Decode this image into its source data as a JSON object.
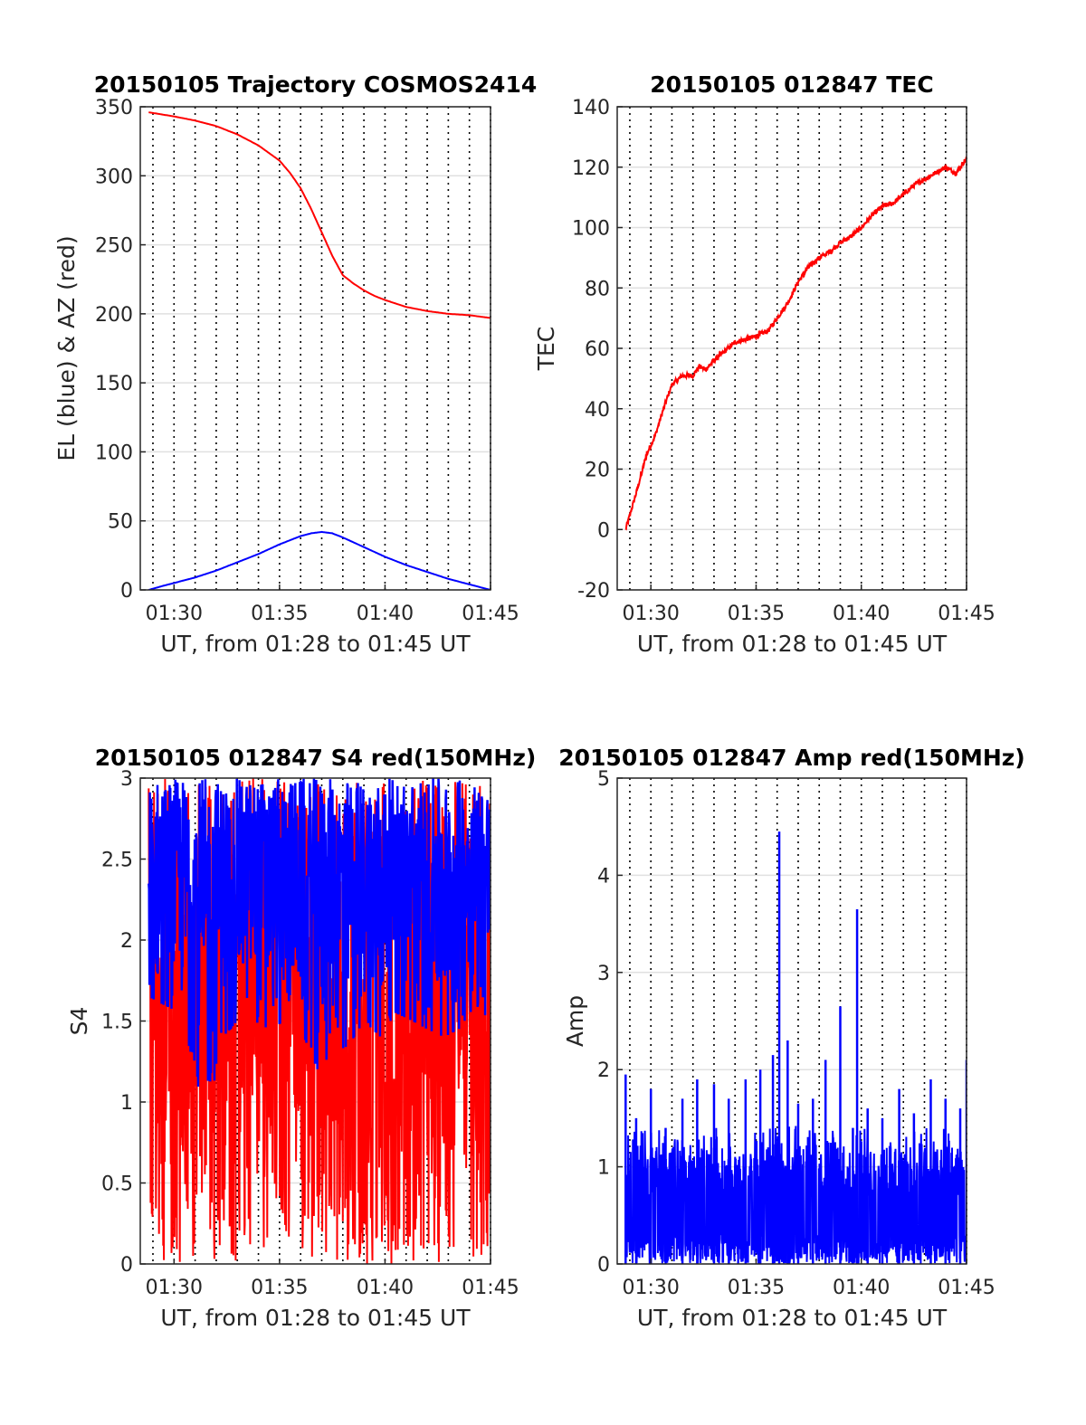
{
  "colors": {
    "az_line": "#ff0000",
    "el_line": "#0000ff",
    "tec_line": "#ff0000",
    "s4_red": "#ff0000",
    "s4_blue": "#0000ff",
    "amp_line": "#0000ff",
    "grid_dotted": "#000000",
    "grid_light": "#e0e0e0",
    "axes": "#262626"
  },
  "chart_data": [
    {
      "id": "trajectory",
      "type": "line",
      "title": "20150105 Trajectory COSMOS2414",
      "xlabel": "UT, from 01:28 to 01:45 UT",
      "ylabel": "EL (blue) & AZ (red)",
      "xlim": [
        88.4,
        105
      ],
      "ylim": [
        0,
        350
      ],
      "xticks": [
        90,
        95,
        100,
        105
      ],
      "xtick_labels": [
        "01:30",
        "01:35",
        "01:40",
        "01:45"
      ],
      "vgrid_minutes": [
        89,
        90,
        91,
        92,
        93,
        94,
        95,
        96,
        97,
        98,
        99,
        100,
        101,
        102,
        103,
        104,
        105
      ],
      "yticks": [
        0,
        50,
        100,
        150,
        200,
        250,
        300,
        350
      ],
      "ytick_labels": [
        "0",
        "50",
        "100",
        "150",
        "200",
        "250",
        "300",
        "350"
      ],
      "grid": true,
      "series": [
        {
          "name": "AZ",
          "color": "#ff0000",
          "x": [
            88.8,
            90,
            91,
            92,
            93,
            94,
            95,
            95.5,
            96,
            96.5,
            97,
            97.5,
            98,
            98.5,
            99,
            99.5,
            100,
            101,
            102,
            103,
            104,
            105
          ],
          "y": [
            346,
            343,
            340,
            336,
            330,
            322,
            311,
            302,
            291,
            276,
            259,
            242,
            228,
            222,
            217,
            213,
            210,
            205,
            202,
            200,
            199,
            197
          ]
        },
        {
          "name": "EL",
          "color": "#0000ff",
          "x": [
            88.8,
            89.5,
            90,
            91,
            92,
            93,
            94,
            95,
            96,
            96.5,
            97,
            97.5,
            98,
            99,
            100,
            101,
            102,
            103,
            104,
            105
          ],
          "y": [
            0,
            3,
            5,
            9,
            14,
            20,
            26,
            33,
            39,
            41,
            42,
            41,
            38,
            31,
            24,
            18,
            13,
            8,
            4,
            0
          ]
        }
      ]
    },
    {
      "id": "tec",
      "type": "line",
      "title": "20150105 012847 TEC",
      "xlabel": "UT, from 01:28 to 01:45 UT",
      "ylabel": "TEC",
      "xlim": [
        88.4,
        105
      ],
      "ylim": [
        -20,
        140
      ],
      "xticks": [
        90,
        95,
        100,
        105
      ],
      "xtick_labels": [
        "01:30",
        "01:35",
        "01:40",
        "01:45"
      ],
      "vgrid_minutes": [
        89,
        90,
        91,
        92,
        93,
        94,
        95,
        96,
        97,
        98,
        99,
        100,
        101,
        102,
        103,
        104,
        105
      ],
      "yticks": [
        -20,
        0,
        20,
        40,
        60,
        80,
        100,
        120,
        140
      ],
      "ytick_labels": [
        "-20",
        "0",
        "20",
        "40",
        "60",
        "80",
        "100",
        "120",
        "140"
      ],
      "grid": true,
      "series": [
        {
          "name": "TEC",
          "color": "#ff0000",
          "x": [
            88.8,
            89.3,
            89.8,
            90.2,
            90.6,
            91.0,
            91.5,
            92.0,
            92.3,
            92.6,
            93.0,
            93.5,
            94.0,
            94.5,
            95.0,
            95.3,
            95.6,
            96.0,
            96.5,
            97.0,
            97.5,
            98.0,
            98.5,
            99.0,
            99.5,
            100.0,
            100.5,
            101.0,
            101.5,
            102.0,
            102.5,
            103.0,
            103.5,
            104.0,
            104.5,
            105.0
          ],
          "y": [
            0,
            12,
            25,
            31,
            40,
            48,
            51,
            51,
            54,
            53,
            56,
            59,
            62,
            63,
            64,
            65,
            66,
            70,
            75,
            82,
            87,
            90,
            92,
            95,
            97,
            100,
            104,
            107,
            108,
            111,
            114,
            116,
            118,
            120,
            118,
            123
          ]
        }
      ]
    },
    {
      "id": "s4",
      "type": "line",
      "title": "20150105 012847 S4 red(150MHz)",
      "xlabel": "UT, from 01:28 to 01:45 UT",
      "ylabel": "S4",
      "xlim": [
        88.4,
        105
      ],
      "ylim": [
        0,
        3
      ],
      "xticks": [
        90,
        95,
        100,
        105
      ],
      "xtick_labels": [
        "01:30",
        "01:35",
        "01:40",
        "01:45"
      ],
      "vgrid_minutes": [
        89,
        90,
        91,
        92,
        93,
        94,
        95,
        96,
        97,
        98,
        99,
        100,
        101,
        102,
        103,
        104,
        105
      ],
      "yticks": [
        0,
        0.5,
        1,
        1.5,
        2,
        2.5,
        3
      ],
      "ytick_labels": [
        "0",
        "0.5",
        "1",
        "1.5",
        "2",
        "2.5",
        "3"
      ],
      "grid": true,
      "series": [
        {
          "name": "S4 red",
          "color": "#ff0000",
          "x": [
            88.8,
            90.3,
            91.6,
            93.0,
            94.5,
            96.0,
            97.5,
            99.0,
            100.5,
            102.0,
            103.5,
            105.0
          ],
          "y_max": [
            3,
            3,
            3,
            3,
            3,
            3,
            3,
            3,
            3,
            3,
            3,
            3
          ],
          "y_min": [
            0,
            0,
            0,
            0,
            0,
            0,
            0,
            0,
            0,
            0,
            0,
            0
          ]
        },
        {
          "name": "S4 blue",
          "color": "#0000ff",
          "x": [
            88.8,
            89.5,
            90.3,
            91.0,
            91.6,
            92.3,
            93.0,
            93.8,
            94.5,
            95.3,
            96.0,
            96.8,
            97.5,
            98.3,
            99.0,
            99.8,
            100.5,
            101.3,
            102.0,
            102.8,
            103.5,
            104.3,
            105.0
          ],
          "y_max": [
            3,
            3,
            3,
            3,
            3,
            3,
            3,
            3,
            3,
            3,
            3,
            3,
            3,
            3,
            3,
            3,
            3,
            3,
            3,
            3,
            3,
            3,
            3
          ],
          "y_min": [
            1.65,
            1.6,
            1.55,
            1.2,
            0.75,
            1.4,
            1.5,
            1.5,
            1.45,
            1.5,
            1.45,
            1.2,
            1.3,
            1.35,
            1.5,
            1.4,
            1.55,
            1.5,
            1.45,
            1.4,
            1.45,
            1.6,
            1.5
          ]
        }
      ]
    },
    {
      "id": "amp",
      "type": "line",
      "title": "20150105 012847 Amp red(150MHz)",
      "xlabel": "UT, from 01:28 to 01:45 UT",
      "ylabel": "Amp",
      "xlim": [
        88.4,
        105
      ],
      "ylim": [
        0,
        5
      ],
      "xticks": [
        90,
        95,
        100,
        105
      ],
      "xtick_labels": [
        "01:30",
        "01:35",
        "01:40",
        "01:45"
      ],
      "vgrid_minutes": [
        89,
        90,
        91,
        92,
        93,
        94,
        95,
        96,
        97,
        98,
        99,
        100,
        101,
        102,
        103,
        104,
        105
      ],
      "yticks": [
        0,
        1,
        2,
        3,
        4,
        5
      ],
      "ytick_labels": [
        "0",
        "1",
        "2",
        "3",
        "4",
        "5"
      ],
      "grid": true,
      "series": [
        {
          "name": "Amp",
          "color": "#0000ff",
          "x": [
            88.8,
            89.3,
            90.0,
            90.7,
            91.5,
            92.2,
            93.0,
            93.7,
            94.5,
            95.2,
            95.8,
            96.1,
            96.5,
            97.0,
            97.7,
            98.3,
            99.0,
            99.6,
            99.8,
            100.3,
            101.0,
            101.8,
            102.5,
            103.3,
            104.0,
            104.7,
            105.0
          ],
          "y_peak": [
            1.95,
            1.5,
            1.8,
            1.4,
            1.7,
            1.9,
            1.85,
            1.7,
            1.9,
            2.0,
            2.15,
            4.45,
            2.3,
            1.65,
            1.7,
            2.1,
            2.65,
            1.4,
            3.65,
            1.6,
            1.5,
            1.8,
            1.55,
            1.9,
            1.7,
            1.6,
            2.1
          ]
        }
      ]
    }
  ]
}
